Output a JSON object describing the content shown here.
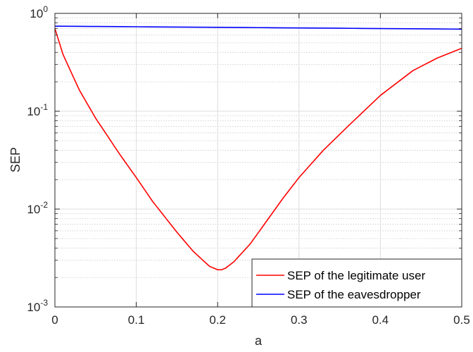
{
  "chart_data": {
    "type": "line",
    "xlabel": "a",
    "ylabel": "SEP",
    "xlim": [
      0,
      0.5
    ],
    "ylim": [
      0.001,
      1
    ],
    "y_scale": "log",
    "grid": true,
    "legend_position": "bottom-right",
    "x_ticks": [
      "0",
      "0.1",
      "0.2",
      "0.3",
      "0.4",
      "0.5"
    ],
    "y_ticks": [
      {
        "base": "10",
        "exp": "-3",
        "value": 0.001
      },
      {
        "base": "10",
        "exp": "-2",
        "value": 0.01
      },
      {
        "base": "10",
        "exp": "-1",
        "value": 0.1
      },
      {
        "base": "10",
        "exp": "0",
        "value": 1
      }
    ],
    "series": [
      {
        "name": "SEP of the legitimate user",
        "color": "#ff0000",
        "x": [
          0,
          0.01,
          0.02,
          0.03,
          0.05,
          0.08,
          0.1,
          0.12,
          0.15,
          0.17,
          0.19,
          0.2,
          0.205,
          0.21,
          0.22,
          0.24,
          0.26,
          0.28,
          0.3,
          0.33,
          0.36,
          0.4,
          0.44,
          0.47,
          0.5
        ],
        "y": [
          0.7,
          0.38,
          0.25,
          0.165,
          0.085,
          0.036,
          0.021,
          0.012,
          0.0058,
          0.0037,
          0.0026,
          0.0024,
          0.0024,
          0.0025,
          0.0029,
          0.0044,
          0.0075,
          0.0128,
          0.021,
          0.04,
          0.07,
          0.145,
          0.26,
          0.35,
          0.44
        ]
      },
      {
        "name": "SEP of the eavesdropper",
        "color": "#0000ff",
        "x": [
          0,
          0.1,
          0.2,
          0.3,
          0.4,
          0.5
        ],
        "y": [
          0.74,
          0.73,
          0.72,
          0.71,
          0.7,
          0.69
        ]
      }
    ]
  }
}
